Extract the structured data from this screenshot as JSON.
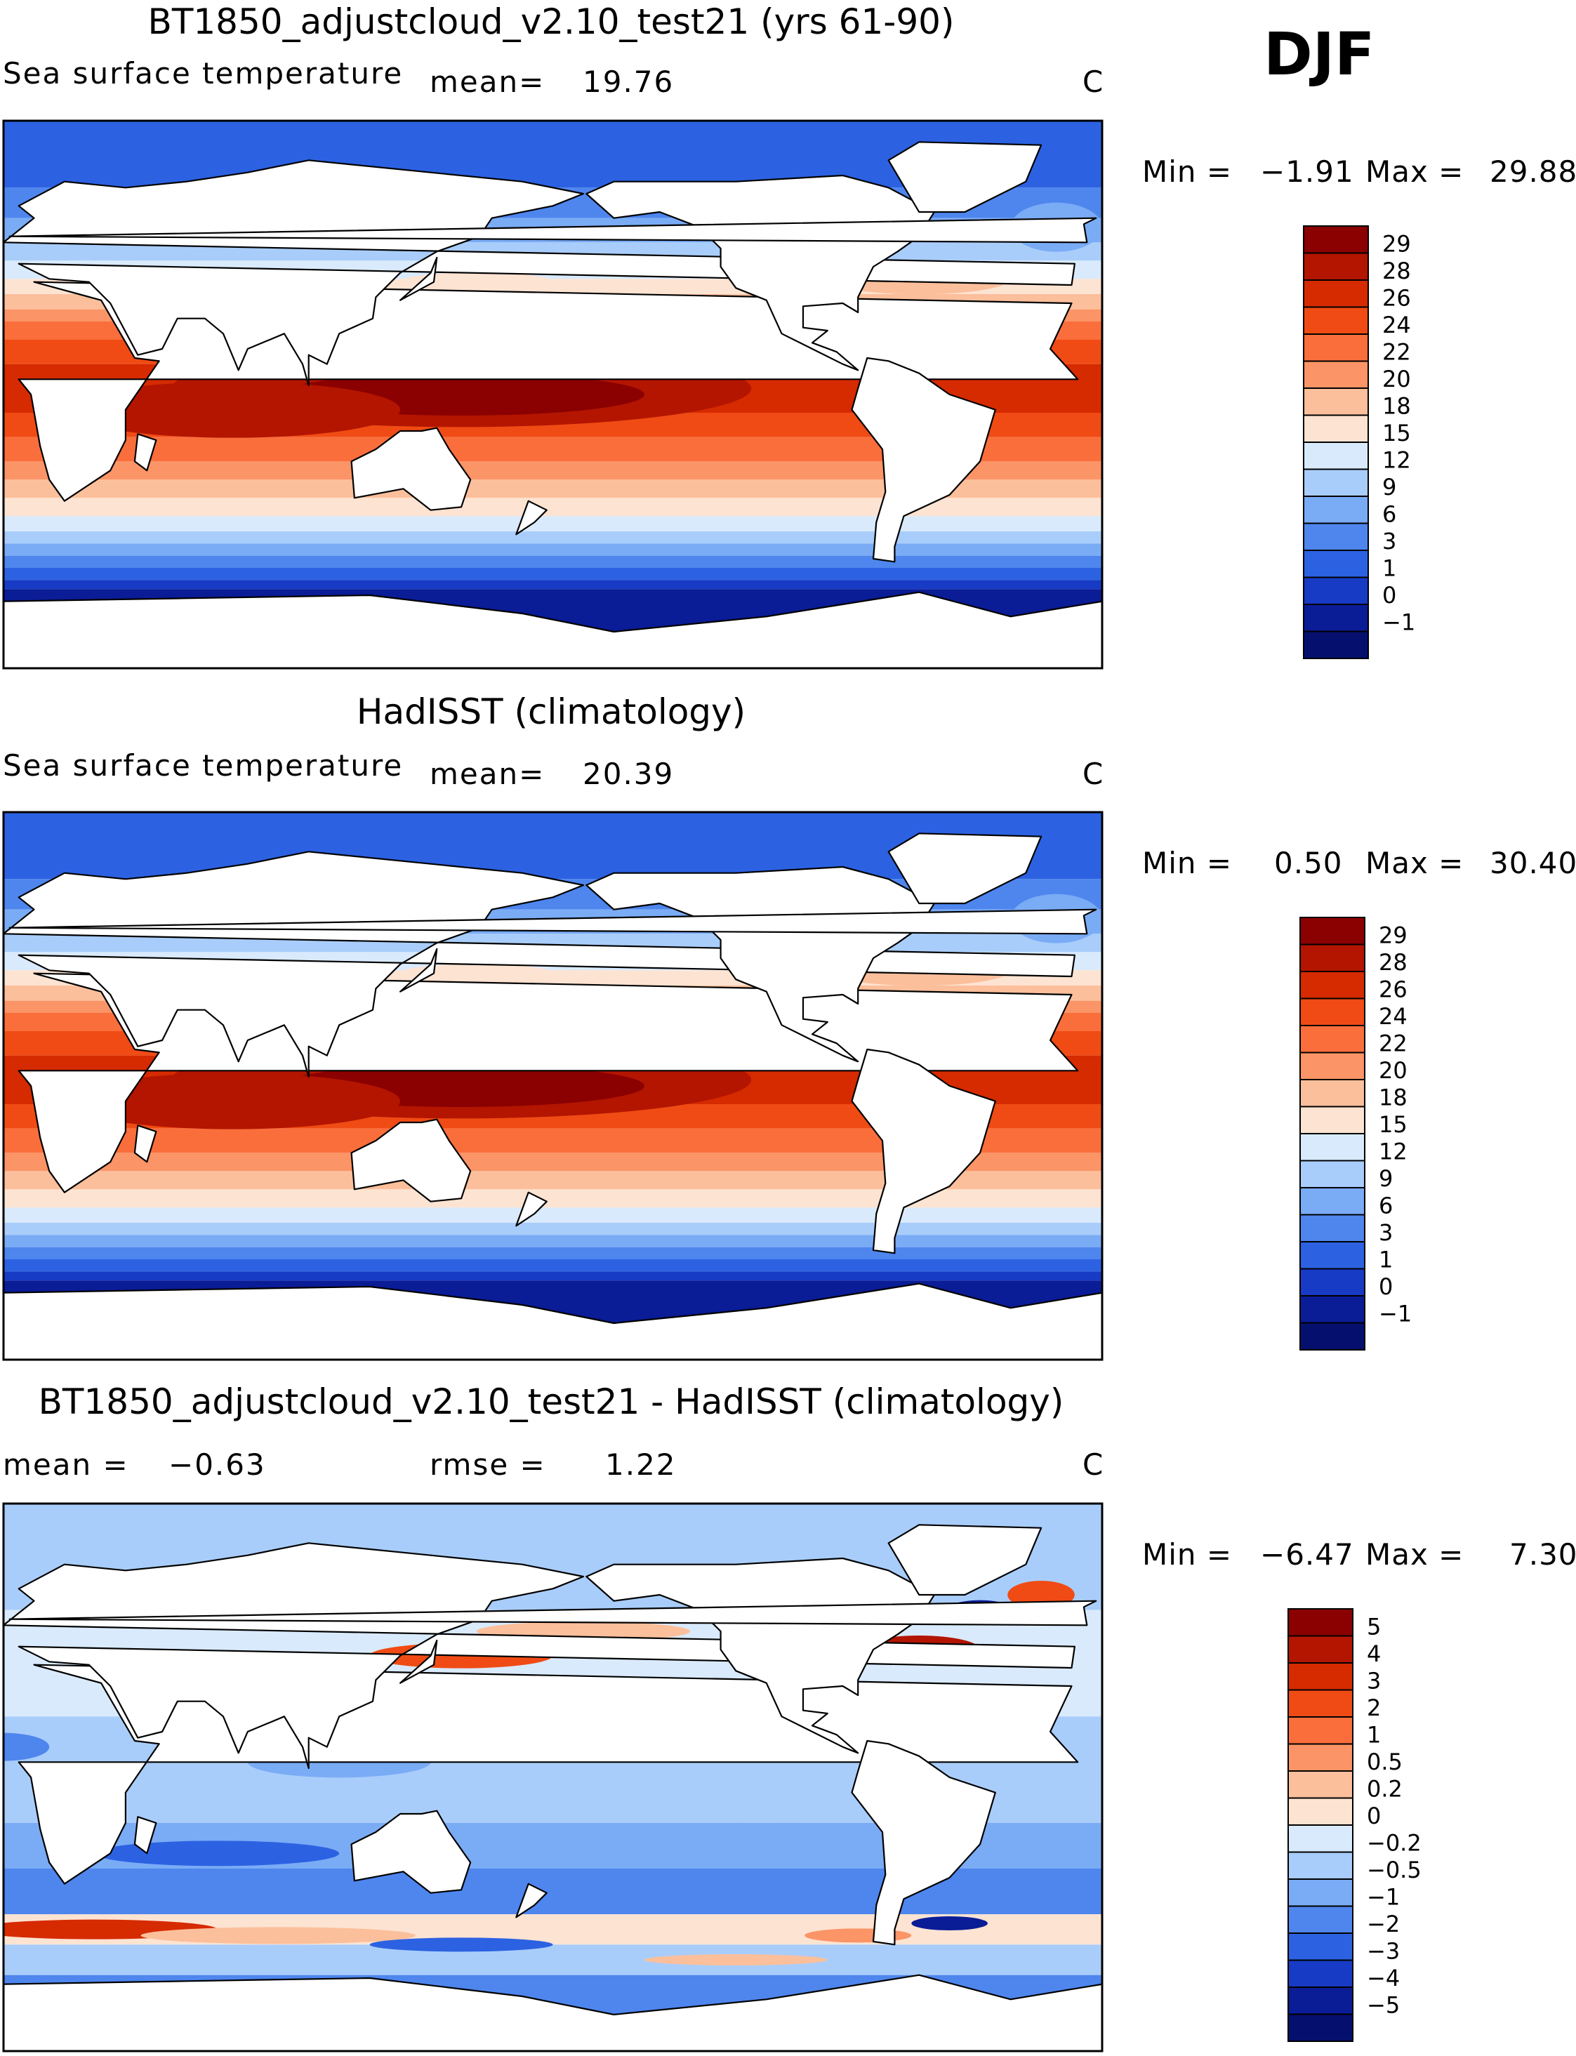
{
  "season": "DJF",
  "colors": {
    "land": "#ffffff",
    "coast": "#000000"
  },
  "panels": [
    {
      "title": "BT1850_adjustcloud_v2.10_test21 (yrs 61-90)",
      "variable": "Sea surface temperature",
      "stat1_label": "mean=",
      "stat1_value": "19.76",
      "stat2_label": "",
      "stat2_value": "",
      "units": "C",
      "min_label": "Min =",
      "min_value": "−1.91",
      "max_label": "Max =",
      "max_value": "29.88",
      "colorbar": {
        "labels": [
          "29",
          "28",
          "26",
          "24",
          "22",
          "20",
          "18",
          "15",
          "12",
          "9",
          "6",
          "3",
          "1",
          "0",
          "−1"
        ],
        "colors": [
          "#8b0000",
          "#b31500",
          "#d62a00",
          "#f04b14",
          "#fa6e3c",
          "#fb9466",
          "#fcbf9b",
          "#fde3d2",
          "#d9eafc",
          "#a9cdfa",
          "#7aabf5",
          "#4e86ee",
          "#2c62e2",
          "#173bc4",
          "#0a1c96",
          "#05106e"
        ]
      }
    },
    {
      "title": "HadISST (climatology)",
      "variable": "Sea surface temperature",
      "stat1_label": "mean=",
      "stat1_value": "20.39",
      "stat2_label": "",
      "stat2_value": "",
      "units": "C",
      "min_label": "Min =",
      "min_value": "0.50",
      "max_label": "Max =",
      "max_value": "30.40",
      "colorbar": {
        "labels": [
          "29",
          "28",
          "26",
          "24",
          "22",
          "20",
          "18",
          "15",
          "12",
          "9",
          "6",
          "3",
          "1",
          "0",
          "−1"
        ],
        "colors": [
          "#8b0000",
          "#b31500",
          "#d62a00",
          "#f04b14",
          "#fa6e3c",
          "#fb9466",
          "#fcbf9b",
          "#fde3d2",
          "#d9eafc",
          "#a9cdfa",
          "#7aabf5",
          "#4e86ee",
          "#2c62e2",
          "#173bc4",
          "#0a1c96",
          "#05106e"
        ]
      }
    },
    {
      "title": "BT1850_adjustcloud_v2.10_test21 - HadISST (climatology)",
      "variable": "",
      "stat1_label": "mean =",
      "stat1_value": "−0.63",
      "stat2_label": "rmse =",
      "stat2_value": "1.22",
      "units": "C",
      "min_label": "Min =",
      "min_value": "−6.47",
      "max_label": "Max =",
      "max_value": "7.30",
      "colorbar": {
        "labels": [
          "5",
          "4",
          "3",
          "2",
          "1",
          "0.5",
          "0.2",
          "0",
          "−0.2",
          "−0.5",
          "−1",
          "−2",
          "−3",
          "−4",
          "−5"
        ],
        "colors": [
          "#8b0000",
          "#b31500",
          "#d62a00",
          "#f04b14",
          "#fa6e3c",
          "#fb9466",
          "#fcbf9b",
          "#fde3d2",
          "#d9eafc",
          "#a9cdfa",
          "#7aabf5",
          "#4e86ee",
          "#2c62e2",
          "#173bc4",
          "#0a1c96",
          "#05106e"
        ]
      }
    }
  ],
  "chart_data": [
    {
      "type": "heatmap",
      "title": "BT1850_adjustcloud_v2.10_test21 (yrs 61-90)",
      "subtitle": "Sea surface temperature",
      "units": "C",
      "mean": 19.76,
      "min": -1.91,
      "max": 29.88,
      "contour_levels": [
        -1,
        0,
        1,
        3,
        6,
        9,
        12,
        15,
        18,
        20,
        22,
        24,
        26,
        28,
        29
      ]
    },
    {
      "type": "heatmap",
      "title": "HadISST (climatology)",
      "subtitle": "Sea surface temperature",
      "units": "C",
      "mean": 20.39,
      "min": 0.5,
      "max": 30.4,
      "contour_levels": [
        -1,
        0,
        1,
        3,
        6,
        9,
        12,
        15,
        18,
        20,
        22,
        24,
        26,
        28,
        29
      ]
    },
    {
      "type": "heatmap",
      "title": "BT1850_adjustcloud_v2.10_test21 - HadISST (climatology)",
      "units": "C",
      "mean": -0.63,
      "rmse": 1.22,
      "min": -6.47,
      "max": 7.3,
      "contour_levels": [
        -5,
        -4,
        -3,
        -2,
        -1,
        -0.5,
        -0.2,
        0,
        0.2,
        0.5,
        1,
        2,
        3,
        4,
        5
      ]
    }
  ]
}
